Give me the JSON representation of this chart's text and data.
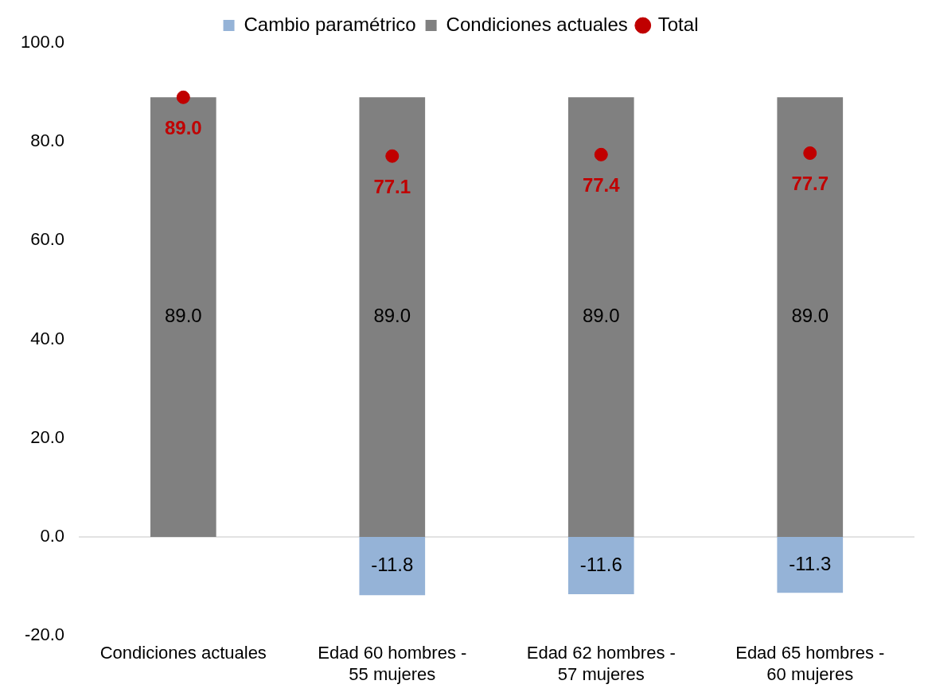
{
  "chart_data": {
    "type": "bar",
    "stacked": true,
    "categories": [
      "Condiciones actuales",
      "Edad 60 hombres - 55 mujeres",
      "Edad 62 hombres - 57 mujeres",
      "Edad 65 hombres - 60 mujeres"
    ],
    "series": [
      {
        "name": "Cambio paramétrico",
        "color": "#95b3d7",
        "values": [
          null,
          -11.8,
          -11.6,
          -11.3
        ],
        "value_labels": [
          null,
          "-11.8",
          "-11.6",
          "-11.3"
        ]
      },
      {
        "name": "Condiciones actuales",
        "color": "#808080",
        "values": [
          89.0,
          89.0,
          89.0,
          89.0
        ],
        "value_labels": [
          "89.0",
          "89.0",
          "89.0",
          "89.0"
        ]
      },
      {
        "name": "Total",
        "type": "scatter",
        "color": "#c00000",
        "values": [
          89.0,
          77.1,
          77.4,
          77.7
        ],
        "value_labels": [
          "89.0",
          "77.1",
          "77.4",
          "77.7"
        ]
      }
    ],
    "ylim": [
      -20,
      100
    ],
    "yticks": [
      {
        "value": -20,
        "label": "-20.0"
      },
      {
        "value": 0,
        "label": "0.0"
      },
      {
        "value": 20,
        "label": "20.0"
      },
      {
        "value": 40,
        "label": "40.0"
      },
      {
        "value": 60,
        "label": "60.0"
      },
      {
        "value": 80,
        "label": "80.0"
      },
      {
        "value": 100,
        "label": "100.0"
      }
    ],
    "ref_lines": [
      {
        "axis": "y",
        "value": 0,
        "color": "#d9d9d9"
      }
    ],
    "grid": false,
    "legend": "top",
    "marker": "circle"
  }
}
